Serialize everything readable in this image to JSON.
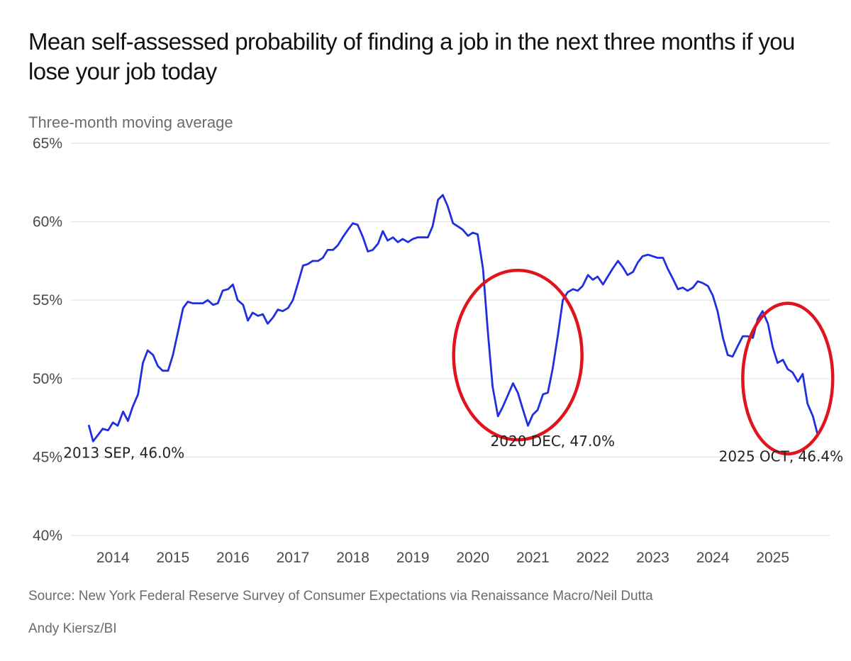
{
  "header": {
    "title": "Mean self-assessed probability of finding a job in the next three months if you lose your job today",
    "subtitle": "Three-month moving average"
  },
  "footer": {
    "source": "Source: New York Federal Reserve Survey of Consumer Expectations via Renaissance Macro/Neil Dutta",
    "credit": "Andy Kiersz/BI"
  },
  "colors": {
    "line": "#1f2fe0",
    "highlight": "#e0141c",
    "grid": "#e3e3e3"
  },
  "chart_data": {
    "type": "line",
    "title": "Mean self-assessed probability of finding a job in the next three months if you lose your job today",
    "subtitle": "Three-month moving average",
    "xlabel": "",
    "ylabel": "",
    "ylim": [
      40,
      65
    ],
    "xlim": [
      2013.3,
      2025.95
    ],
    "grid": true,
    "yticks": [
      40,
      45,
      50,
      55,
      60,
      65
    ],
    "ytick_labels": [
      "40%",
      "45%",
      "50%",
      "55%",
      "60%",
      "65%"
    ],
    "xticks": [
      2014,
      2015,
      2016,
      2017,
      2018,
      2019,
      2020,
      2021,
      2022,
      2023,
      2024,
      2025
    ],
    "xtick_labels": [
      "2014",
      "2015",
      "2016",
      "2017",
      "2018",
      "2019",
      "2020",
      "2021",
      "2022",
      "2023",
      "2024",
      "2025"
    ],
    "series": [
      {
        "name": "Mean probability of finding a job (3-month moving average)",
        "x": [
          2013.6,
          2013.67,
          2013.75,
          2013.83,
          2013.92,
          2014.0,
          2014.08,
          2014.17,
          2014.25,
          2014.33,
          2014.42,
          2014.5,
          2014.58,
          2014.67,
          2014.75,
          2014.83,
          2014.92,
          2015.0,
          2015.08,
          2015.17,
          2015.25,
          2015.33,
          2015.42,
          2015.5,
          2015.58,
          2015.67,
          2015.75,
          2015.83,
          2015.92,
          2016.0,
          2016.08,
          2016.17,
          2016.25,
          2016.33,
          2016.42,
          2016.5,
          2016.58,
          2016.67,
          2016.75,
          2016.83,
          2016.92,
          2017.0,
          2017.08,
          2017.17,
          2017.25,
          2017.33,
          2017.42,
          2017.5,
          2017.58,
          2017.67,
          2017.75,
          2017.83,
          2017.92,
          2018.0,
          2018.08,
          2018.17,
          2018.25,
          2018.33,
          2018.42,
          2018.5,
          2018.58,
          2018.67,
          2018.75,
          2018.83,
          2018.92,
          2019.0,
          2019.08,
          2019.17,
          2019.25,
          2019.33,
          2019.42,
          2019.5,
          2019.58,
          2019.67,
          2019.75,
          2019.83,
          2019.92,
          2020.0,
          2020.08,
          2020.17,
          2020.25,
          2020.33,
          2020.42,
          2020.5,
          2020.58,
          2020.67,
          2020.75,
          2020.83,
          2020.92,
          2021.0,
          2021.08,
          2021.17,
          2021.25,
          2021.33,
          2021.42,
          2021.5,
          2021.58,
          2021.67,
          2021.75,
          2021.83,
          2021.92,
          2022.0,
          2022.08,
          2022.17,
          2022.25,
          2022.33,
          2022.42,
          2022.5,
          2022.58,
          2022.67,
          2022.75,
          2022.83,
          2022.92,
          2023.0,
          2023.08,
          2023.17,
          2023.25,
          2023.33,
          2023.42,
          2023.5,
          2023.58,
          2023.67,
          2023.75,
          2023.83,
          2023.92,
          2024.0,
          2024.08,
          2024.17,
          2024.25,
          2024.33,
          2024.42,
          2024.5,
          2024.58,
          2024.67,
          2024.75,
          2024.83,
          2024.92,
          2025.0,
          2025.08,
          2025.17,
          2025.25,
          2025.33,
          2025.42,
          2025.5,
          2025.58,
          2025.67,
          2025.75
        ],
        "values": [
          47.0,
          46.0,
          46.4,
          46.8,
          46.7,
          47.2,
          47.0,
          47.9,
          47.3,
          48.2,
          49.0,
          51.0,
          51.8,
          51.5,
          50.8,
          50.5,
          50.5,
          51.5,
          52.9,
          54.5,
          54.9,
          54.8,
          54.8,
          54.8,
          55.0,
          54.7,
          54.8,
          55.6,
          55.7,
          56.0,
          55.0,
          54.7,
          53.7,
          54.2,
          54.0,
          54.1,
          53.5,
          53.9,
          54.4,
          54.3,
          54.5,
          55.0,
          56.0,
          57.2,
          57.3,
          57.5,
          57.5,
          57.7,
          58.2,
          58.2,
          58.5,
          59.0,
          59.5,
          59.9,
          59.8,
          59.0,
          58.1,
          58.2,
          58.6,
          59.4,
          58.8,
          59.0,
          58.7,
          58.9,
          58.7,
          58.9,
          59.0,
          59.0,
          59.0,
          59.7,
          61.4,
          61.7,
          61.0,
          59.9,
          59.7,
          59.5,
          59.1,
          59.3,
          59.2,
          57.0,
          53.0,
          49.5,
          47.6,
          48.2,
          48.9,
          49.7,
          49.1,
          48.1,
          47.0,
          47.7,
          48.0,
          49.0,
          49.1,
          50.6,
          52.8,
          55.0,
          55.5,
          55.7,
          55.6,
          55.9,
          56.6,
          56.3,
          56.5,
          56.0,
          56.5,
          57.0,
          57.5,
          57.1,
          56.6,
          56.8,
          57.4,
          57.8,
          57.9,
          57.8,
          57.7,
          57.7,
          57.0,
          56.4,
          55.7,
          55.8,
          55.6,
          55.8,
          56.2,
          56.1,
          55.9,
          55.3,
          54.3,
          52.6,
          51.5,
          51.4,
          52.1,
          52.7,
          52.7,
          52.6,
          53.8,
          54.3,
          53.5,
          52.0,
          51.0,
          51.2,
          50.6,
          50.4,
          49.8,
          50.3,
          48.4,
          47.6,
          46.4
        ]
      }
    ],
    "annotations": [
      {
        "text": "2013 SEP, 46.0%",
        "x": 2013.67,
        "y": 46.0
      },
      {
        "text": "2020 DEC, 47.0%",
        "x": 2020.92,
        "y": 47.0
      },
      {
        "text": "2025 OCT, 46.4%",
        "x": 2025.75,
        "y": 46.4
      }
    ],
    "highlight_regions": [
      {
        "x_center": 2020.75,
        "y_center": 51.5,
        "x_halfwidth": 1.07,
        "y_halfwidth": 5.4
      },
      {
        "x_center": 2025.25,
        "y_center": 50.0,
        "x_halfwidth": 0.75,
        "y_halfwidth": 4.8
      }
    ]
  }
}
